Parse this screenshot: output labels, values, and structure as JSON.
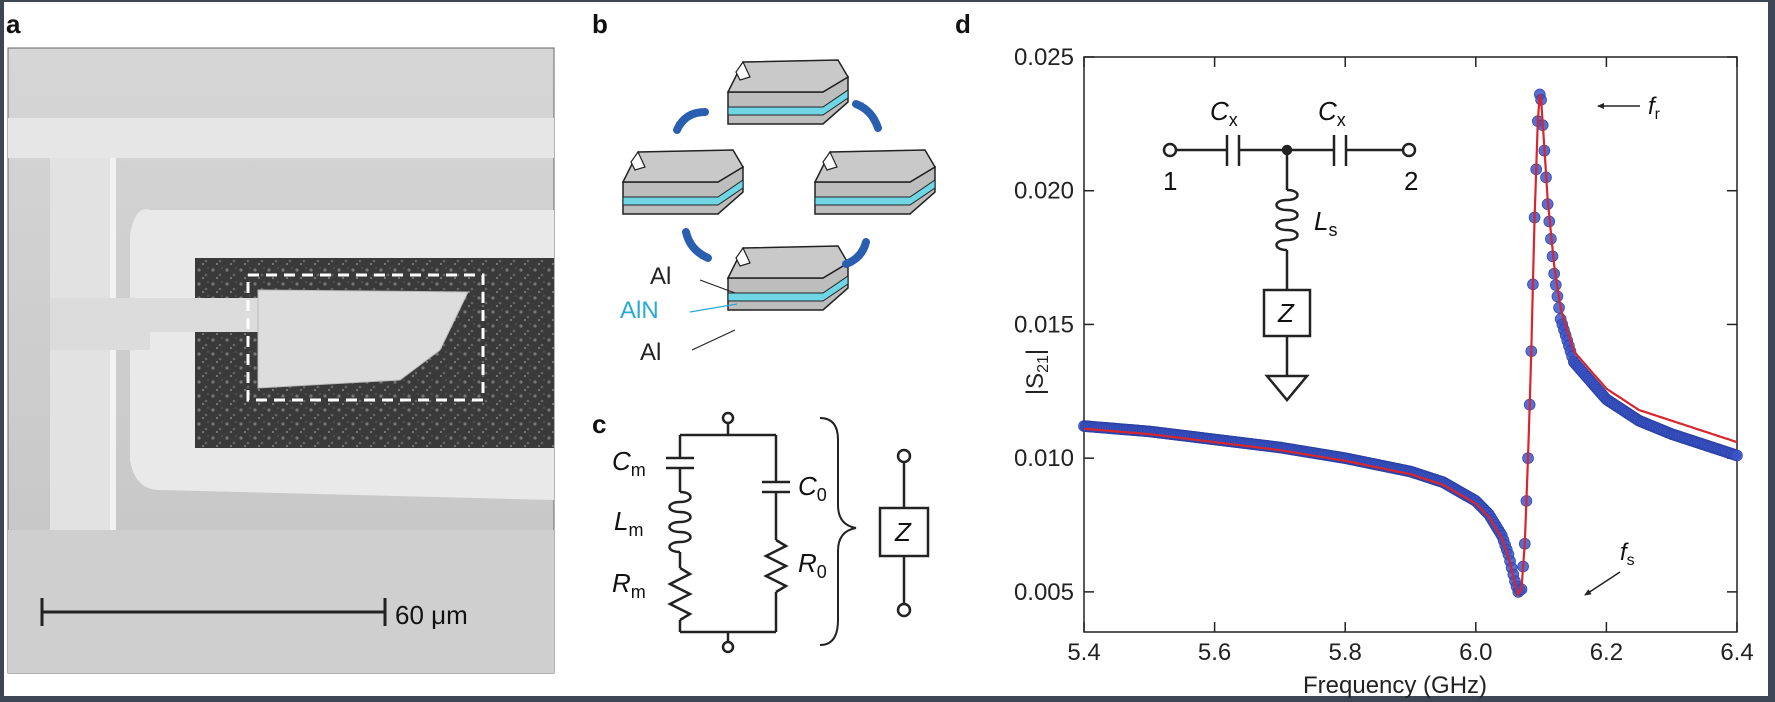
{
  "panels": {
    "a": {
      "label": "a",
      "scale_bar_text": "60 μm"
    },
    "b": {
      "label": "b",
      "layers": [
        "Al",
        "AlN",
        "Al"
      ],
      "layer_colors": {
        "metal": "#c9c9c9",
        "piezo": "#6fd6e6",
        "arrows": "#2a5fb0"
      }
    },
    "c": {
      "label": "c",
      "components": {
        "motional_capacitor_letter": "C",
        "motional_capacitor_sub": "m",
        "motional_inductor_letter": "L",
        "motional_inductor_sub": "m",
        "motional_resistor_letter": "R",
        "motional_resistor_sub": "m",
        "static_capacitor_letter": "C",
        "static_capacitor_sub": "0",
        "static_resistor_letter": "R",
        "static_resistor_sub": "0",
        "impedance": "Z"
      }
    },
    "d": {
      "label": "d",
      "inset": {
        "coupling_cap_letter": "C",
        "coupling_cap_sub": "x",
        "inductor_letter": "L",
        "inductor_sub": "s",
        "impedance": "Z",
        "port_1": "1",
        "port_2": "2"
      },
      "annotations": {
        "fr_letter": "f",
        "fr_sub": "r",
        "fs_letter": "f",
        "fs_sub": "s"
      }
    }
  },
  "chart_data": {
    "type": "line",
    "xlabel": "Frequency (GHz)",
    "ylabel_main": "|S",
    "ylabel_sub": "21",
    "ylabel_end": "|",
    "xlim": [
      5.4,
      6.4
    ],
    "ylim": [
      0.0035,
      0.025
    ],
    "xticks": [
      5.4,
      5.6,
      5.8,
      6.0,
      6.2,
      6.4
    ],
    "xtick_labels": [
      "5.4",
      "5.6",
      "5.8",
      "6.0",
      "6.2",
      "6.4"
    ],
    "yticks": [
      0.005,
      0.01,
      0.015,
      0.02,
      0.025
    ],
    "ytick_labels": [
      "0.005",
      "0.010",
      "0.015",
      "0.020",
      "0.025"
    ],
    "colors": {
      "measured": "#3b55c8",
      "fit": "#d8262f"
    },
    "series": [
      {
        "style": "markers",
        "x": [
          5.4,
          5.5,
          5.6,
          5.7,
          5.8,
          5.9,
          5.95,
          6.0,
          6.02,
          6.04,
          6.05,
          6.06,
          6.065,
          6.07,
          6.075,
          6.08,
          6.085,
          6.09,
          6.095,
          6.098,
          6.1,
          6.105,
          6.11,
          6.12,
          6.13,
          6.15,
          6.2,
          6.25,
          6.3,
          6.35,
          6.4
        ],
        "y": [
          0.0112,
          0.011,
          0.0107,
          0.0104,
          0.01,
          0.0095,
          0.0091,
          0.0084,
          0.0079,
          0.0071,
          0.0064,
          0.0054,
          0.005,
          0.0051,
          0.0068,
          0.01,
          0.014,
          0.019,
          0.0226,
          0.0236,
          0.0234,
          0.0215,
          0.0195,
          0.0169,
          0.0152,
          0.0136,
          0.0122,
          0.0114,
          0.0109,
          0.0105,
          0.0101
        ]
      },
      {
        "style": "line",
        "x": [
          5.4,
          5.5,
          5.6,
          5.7,
          5.8,
          5.9,
          5.95,
          6.0,
          6.02,
          6.04,
          6.05,
          6.06,
          6.065,
          6.07,
          6.075,
          6.08,
          6.085,
          6.09,
          6.095,
          6.098,
          6.1,
          6.105,
          6.11,
          6.12,
          6.13,
          6.15,
          6.2,
          6.25,
          6.3,
          6.35,
          6.4
        ],
        "y": [
          0.0111,
          0.0109,
          0.0106,
          0.0103,
          0.0099,
          0.0094,
          0.009,
          0.0083,
          0.0078,
          0.007,
          0.0063,
          0.0053,
          0.0049,
          0.0051,
          0.0068,
          0.01,
          0.014,
          0.019,
          0.0226,
          0.0236,
          0.0234,
          0.0216,
          0.0197,
          0.0172,
          0.0156,
          0.014,
          0.0126,
          0.0118,
          0.0114,
          0.011,
          0.0106
        ]
      }
    ]
  }
}
